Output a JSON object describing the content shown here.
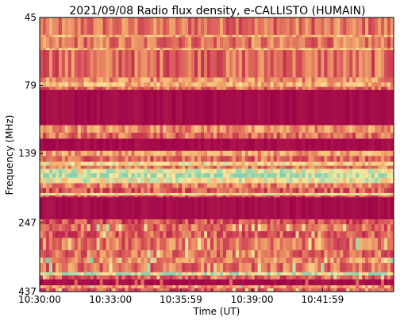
{
  "chart_data": {
    "type": "heatmap",
    "title": "2021/09/08  Radio flux density, e-CALLISTO (HUMAIN)",
    "xlabel": "Time (UT)",
    "ylabel": "Frequency (MHz)",
    "x_ticks": [
      "10:30:00",
      "10:33:00",
      "10:35:59",
      "10:39:00",
      "10:41:59"
    ],
    "x_tick_seconds": [
      0,
      180,
      359,
      540,
      719
    ],
    "x_range_seconds": [
      0,
      900
    ],
    "y_ticks": [
      "45",
      "79",
      "139",
      "247",
      "437"
    ],
    "y_tick_values_mhz": [
      45,
      79,
      139,
      247,
      437
    ],
    "y_range_mhz": [
      45,
      437
    ],
    "y_scale": "log",
    "y_inverted": true,
    "grid": false,
    "colormap": [
      "#9b0048",
      "#c22a4f",
      "#e06b5c",
      "#f5b672",
      "#fbe89e",
      "#84d2b0"
    ],
    "frequency_bands_mhz": [
      {
        "from": 45,
        "to": 52,
        "level": 0.42
      },
      {
        "from": 52,
        "to": 53,
        "level": 0.6
      },
      {
        "from": 53,
        "to": 58,
        "level": 0.42
      },
      {
        "from": 58,
        "to": 59,
        "level": 0.62
      },
      {
        "from": 59,
        "to": 74,
        "level": 0.4
      },
      {
        "from": 74,
        "to": 77,
        "level": 0.5
      },
      {
        "from": 77,
        "to": 80,
        "level": 0.62
      },
      {
        "from": 80,
        "to": 82,
        "level": 0.4
      },
      {
        "from": 82,
        "to": 110,
        "level": 0.05
      },
      {
        "from": 110,
        "to": 117,
        "level": 0.5
      },
      {
        "from": 117,
        "to": 123,
        "level": 0.4
      },
      {
        "from": 123,
        "to": 136,
        "level": 0.06
      },
      {
        "from": 136,
        "to": 142,
        "level": 0.55
      },
      {
        "from": 142,
        "to": 149,
        "level": 0.4
      },
      {
        "from": 149,
        "to": 154,
        "level": 0.72
      },
      {
        "from": 154,
        "to": 158,
        "level": 0.45
      },
      {
        "from": 158,
        "to": 164,
        "level": 0.82
      },
      {
        "from": 164,
        "to": 170,
        "level": 0.95
      },
      {
        "from": 170,
        "to": 178,
        "level": 0.78
      },
      {
        "from": 178,
        "to": 185,
        "level": 0.45
      },
      {
        "from": 185,
        "to": 193,
        "level": 0.35
      },
      {
        "from": 193,
        "to": 197,
        "level": 0.72
      },
      {
        "from": 197,
        "to": 200,
        "level": 0.3
      },
      {
        "from": 200,
        "to": 240,
        "level": 0.06
      },
      {
        "from": 240,
        "to": 250,
        "level": 0.3
      },
      {
        "from": 250,
        "to": 265,
        "level": 0.4
      },
      {
        "from": 265,
        "to": 280,
        "level": 0.35
      },
      {
        "from": 280,
        "to": 310,
        "level": 0.42
      },
      {
        "from": 310,
        "to": 330,
        "level": 0.4
      },
      {
        "from": 330,
        "to": 345,
        "level": 0.5
      },
      {
        "from": 345,
        "to": 372,
        "level": 0.42
      },
      {
        "from": 372,
        "to": 382,
        "level": 0.85
      },
      {
        "from": 382,
        "to": 395,
        "level": 0.35
      },
      {
        "from": 395,
        "to": 415,
        "level": 0.06
      },
      {
        "from": 415,
        "to": 425,
        "level": 0.5
      },
      {
        "from": 425,
        "to": 437,
        "level": 0.35
      }
    ]
  }
}
